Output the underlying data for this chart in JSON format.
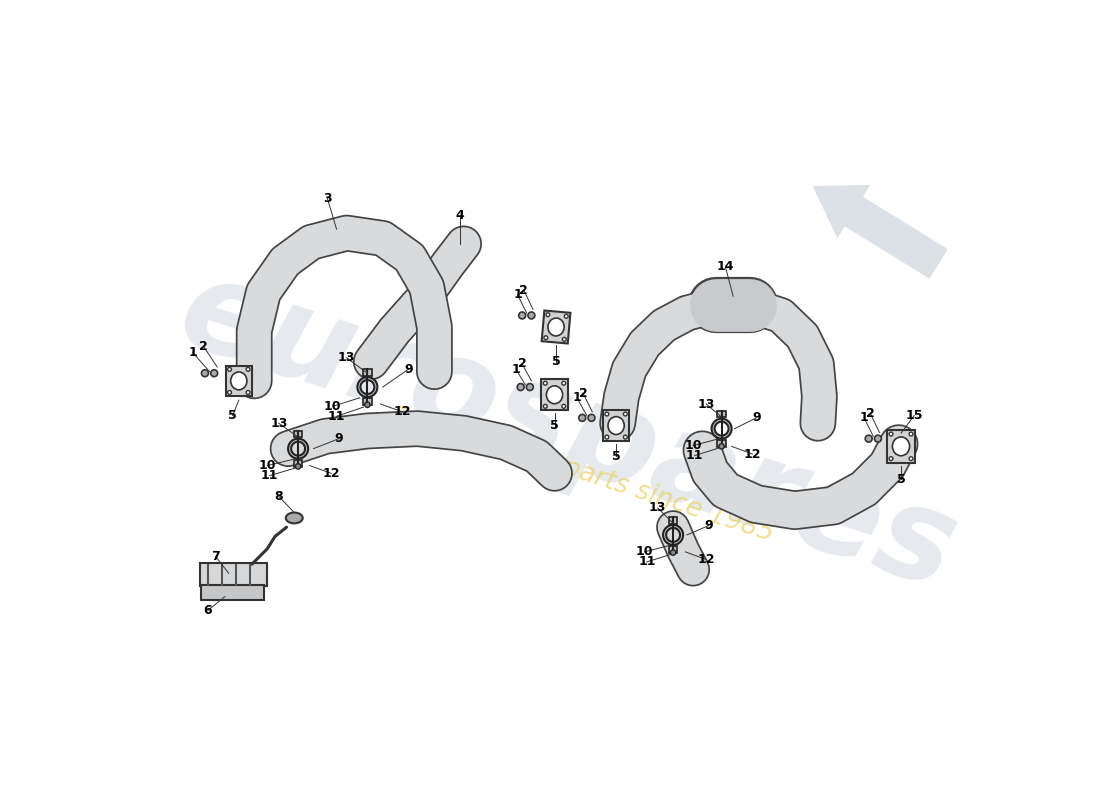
{
  "bg": "#ffffff",
  "pipe_fill": "#d8dadc",
  "pipe_edge": "#444444",
  "flange_fill": "#d0d2d4",
  "flange_edge": "#333333",
  "clamp_fill": "#c0c0c0",
  "clamp_edge": "#222222",
  "line_col": "#111111",
  "leader_col": "#333333",
  "lbl_col": "#000000",
  "lbl_fs": 9,
  "wm_col": "#c8d0dc",
  "wm_sub_col": "#e8d055",
  "arrow_col": "#c0c8d5"
}
